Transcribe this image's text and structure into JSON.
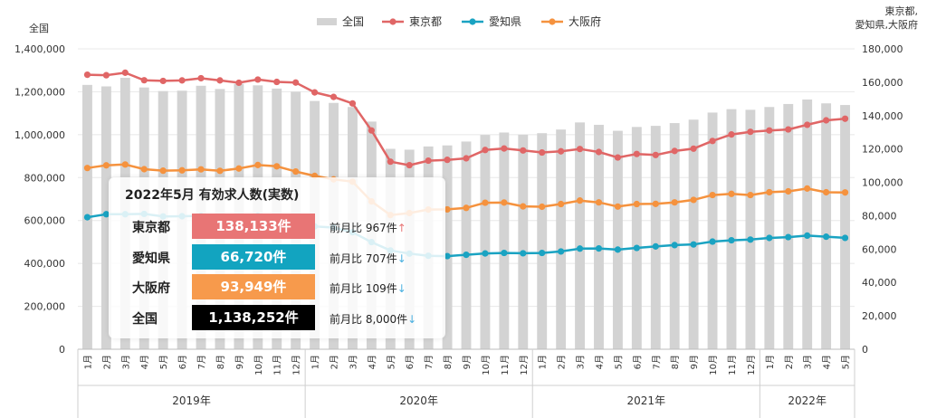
{
  "chart_data": {
    "type": "bar+line",
    "left_axis_title": "全国",
    "right_axis_title_lines": [
      "東京都,",
      "愛知県,大阪府"
    ],
    "left_ylim": [
      0,
      1400000
    ],
    "left_ticks": [
      "0",
      "200,000",
      "400,000",
      "600,000",
      "800,000",
      "1,000,000",
      "1,200,000",
      "1,400,000"
    ],
    "right_ylim": [
      0,
      180000
    ],
    "right_ticks": [
      "0",
      "20,000",
      "40,000",
      "60,000",
      "80,000",
      "100,000",
      "120,000",
      "140,000",
      "160,000",
      "180,000"
    ],
    "months": [
      "1月",
      "2月",
      "3月",
      "4月",
      "5月",
      "6月",
      "7月",
      "8月",
      "9月",
      "10月",
      "11月",
      "12月",
      "1月",
      "2月",
      "3月",
      "4月",
      "5月",
      "6月",
      "7月",
      "8月",
      "9月",
      "10月",
      "11月",
      "12月",
      "1月",
      "2月",
      "3月",
      "4月",
      "5月",
      "6月",
      "7月",
      "8月",
      "9月",
      "10月",
      "11月",
      "12月",
      "1月",
      "2月",
      "3月",
      "4月",
      "5月"
    ],
    "years": [
      {
        "label": "2019年",
        "count": 12
      },
      {
        "label": "2020年",
        "count": 12
      },
      {
        "label": "2021年",
        "count": 12
      },
      {
        "label": "2022年",
        "count": 5
      }
    ],
    "legend": [
      {
        "name": "全国",
        "color": "#d3d3d3",
        "kind": "bar"
      },
      {
        "name": "東京都",
        "color": "#e06666",
        "kind": "line"
      },
      {
        "name": "愛知県",
        "color": "#1aa3c2",
        "kind": "line"
      },
      {
        "name": "大阪府",
        "color": "#f5923e",
        "kind": "line"
      }
    ],
    "series": [
      {
        "name": "全国",
        "axis": "left",
        "values": [
          1232000,
          1225000,
          1265000,
          1220000,
          1203000,
          1205000,
          1228000,
          1213000,
          1237000,
          1230000,
          1215000,
          1200000,
          1157000,
          1148000,
          1129000,
          1061000,
          934000,
          930000,
          945000,
          950000,
          968000,
          999000,
          1010000,
          1000000,
          1007000,
          1024000,
          1057000,
          1046000,
          1018000,
          1036000,
          1041000,
          1054000,
          1070000,
          1103000,
          1119000,
          1116000,
          1129000,
          1143000,
          1164000,
          1146000,
          1138252
        ]
      },
      {
        "name": "東京都",
        "axis": "right",
        "values": [
          164500,
          164200,
          165700,
          161200,
          160800,
          161100,
          162400,
          161100,
          159700,
          161600,
          160200,
          159800,
          153900,
          151200,
          147300,
          131100,
          112400,
          110300,
          113000,
          113500,
          114400,
          119400,
          120300,
          119100,
          117900,
          118600,
          120000,
          118200,
          114900,
          117000,
          116400,
          118800,
          120200,
          124800,
          128700,
          130300,
          131100,
          131700,
          134500,
          137166,
          138133
        ]
      },
      {
        "name": "愛知県",
        "axis": "right",
        "values": [
          79100,
          80900,
          80900,
          81100,
          79600,
          79700,
          79900,
          79300,
          79500,
          79900,
          79300,
          78900,
          73600,
          72900,
          70100,
          64200,
          59200,
          57300,
          56000,
          55800,
          56600,
          57400,
          57700,
          57500,
          57700,
          58600,
          60300,
          60400,
          59700,
          60700,
          61600,
          62400,
          62800,
          64500,
          65300,
          65700,
          66700,
          67200,
          68100,
          67427,
          66720
        ]
      },
      {
        "name": "大阪府",
        "axis": "right",
        "values": [
          108600,
          110200,
          110700,
          107900,
          107000,
          107200,
          107800,
          106900,
          108300,
          110400,
          109600,
          106500,
          103900,
          101800,
          100400,
          88600,
          80400,
          81600,
          83700,
          83800,
          84700,
          87800,
          87900,
          85600,
          85400,
          87000,
          89100,
          88000,
          85500,
          87000,
          87100,
          88000,
          89500,
          92400,
          93100,
          92400,
          94100,
          94600,
          96300,
          94058,
          93949
        ]
      }
    ]
  },
  "info": {
    "title": "2022年5月 有効求人数(実数)",
    "rows": [
      {
        "name": "東京都",
        "value": "138,133件",
        "color": "#e87575",
        "diff": "前月比 967件",
        "arrow": "↑",
        "dir": "up"
      },
      {
        "name": "愛知県",
        "value": "66,720件",
        "color": "#12a4c0",
        "diff": "前月比 707件",
        "arrow": "↓",
        "dir": "down"
      },
      {
        "name": "大阪府",
        "value": "93,949件",
        "color": "#f79a4c",
        "diff": "前月比 109件",
        "arrow": "↓",
        "dir": "down"
      },
      {
        "name": "全国",
        "value": "1,138,252件",
        "color": "#000000",
        "diff": "前月比 8,000件",
        "arrow": "↓",
        "dir": "down"
      }
    ]
  }
}
